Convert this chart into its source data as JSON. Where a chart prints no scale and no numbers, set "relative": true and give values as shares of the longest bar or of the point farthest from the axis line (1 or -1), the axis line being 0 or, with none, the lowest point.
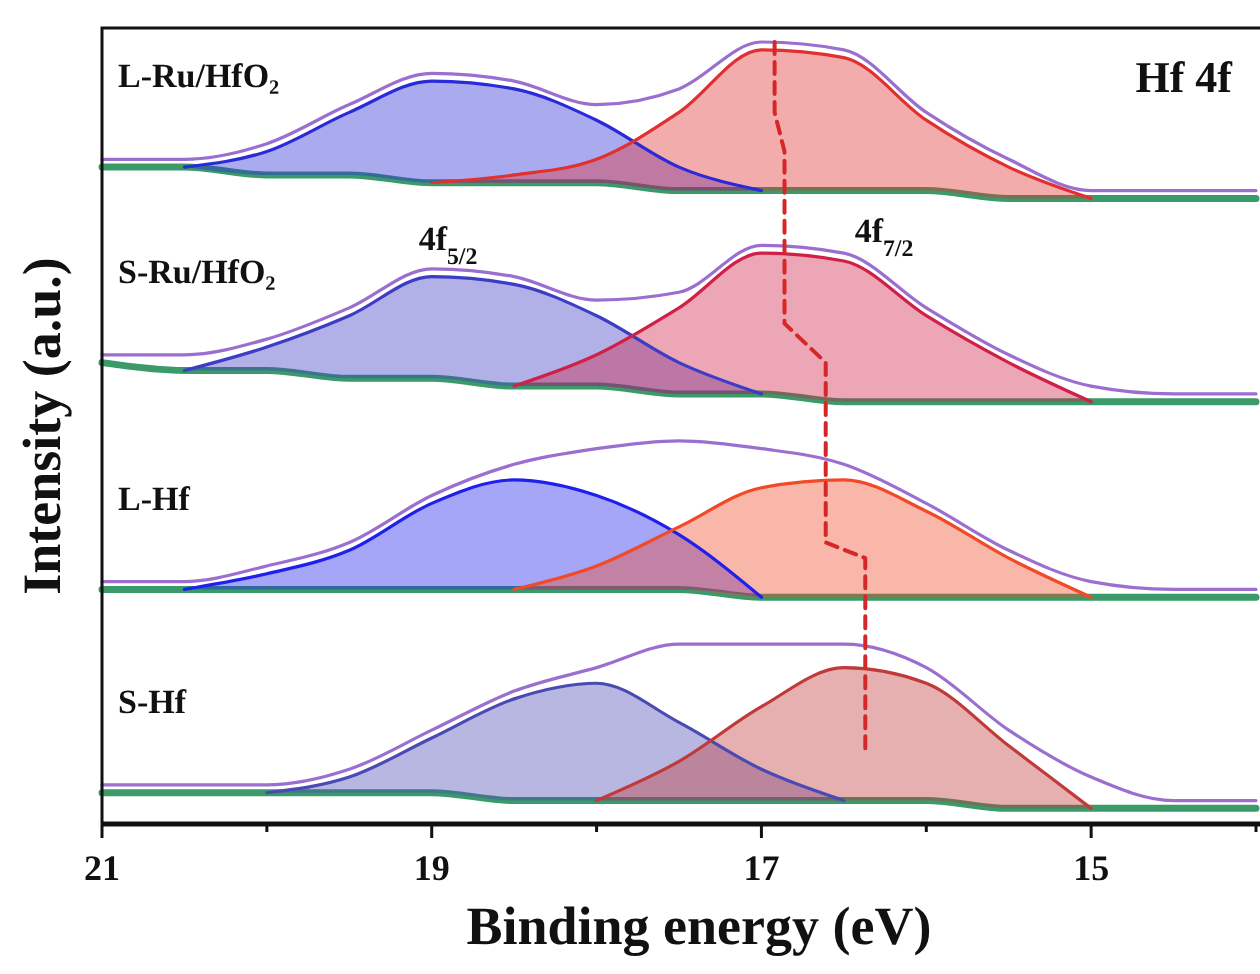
{
  "chart_data": {
    "type": "line",
    "relative": true,
    "xlabel": "Binding energy (eV)",
    "ylabel": "Intensity (a.u.)",
    "xlim": [
      21,
      14
    ],
    "xticks": [
      21,
      {
        "value": 20,
        "label": null
      },
      19,
      {
        "value": 18,
        "label": null
      },
      17,
      {
        "value": 16,
        "label": null
      },
      15,
      {
        "value": 14,
        "label": null
      }
    ],
    "tick_labels": "x",
    "legend": false,
    "marker": "none",
    "x": [
      21,
      20.5,
      20,
      19.5,
      19,
      18.5,
      18,
      17.5,
      17,
      16.5,
      16,
      15.5,
      15,
      14.5,
      14
    ],
    "series": [
      {
        "color": "#3a9a6a",
        "values": [
          0.84,
          0.84,
          0.83,
          0.83,
          0.82,
          0.82,
          0.82,
          0.81,
          0.81,
          0.81,
          0.81,
          0.8,
          0.8,
          0.8,
          0.8
        ]
      },
      {
        "color": "#2a2ad8",
        "values": [
          null,
          0.84,
          0.86,
          0.91,
          0.95,
          0.94,
          0.9,
          0.84,
          0.81,
          null,
          null,
          null,
          null,
          null,
          null
        ],
        "lower": [
          null,
          0.84,
          0.83,
          0.83,
          0.82,
          0.82,
          0.82,
          0.81,
          0.81,
          null,
          null,
          null,
          null,
          null,
          null
        ],
        "upper": [
          null,
          0.84,
          0.86,
          0.91,
          0.95,
          0.94,
          0.9,
          0.84,
          0.81,
          null,
          null,
          null,
          null,
          null,
          null
        ]
      },
      {
        "color": "#e03030",
        "values": [
          null,
          null,
          null,
          null,
          0.82,
          0.83,
          0.85,
          0.91,
          0.99,
          0.98,
          0.9,
          0.84,
          0.8,
          null,
          null
        ],
        "lower": [
          null,
          null,
          null,
          null,
          0.82,
          0.82,
          0.82,
          0.81,
          0.81,
          0.81,
          0.81,
          0.8,
          0.8,
          null,
          null
        ],
        "upper": [
          null,
          null,
          null,
          null,
          0.82,
          0.83,
          0.85,
          0.91,
          0.99,
          0.98,
          0.9,
          0.84,
          0.8,
          null,
          null
        ]
      },
      {
        "name": "L-Ru/HfO₂",
        "color": "#9b6fd0",
        "values": [
          0.85,
          0.85,
          0.87,
          0.92,
          0.96,
          0.95,
          0.92,
          0.94,
          1.0,
          0.99,
          0.91,
          0.85,
          0.81,
          0.81,
          0.81
        ]
      },
      {
        "color": "#3a9a6a",
        "values": [
          0.59,
          0.58,
          0.58,
          0.57,
          0.57,
          0.56,
          0.56,
          0.55,
          0.55,
          0.54,
          0.54,
          0.54,
          0.54,
          0.54,
          0.54
        ]
      },
      {
        "color": "#3c3cc4",
        "values": [
          null,
          0.58,
          0.61,
          0.65,
          0.7,
          0.69,
          0.65,
          0.59,
          0.55,
          null,
          null,
          null,
          null,
          null,
          null
        ],
        "lower": [
          null,
          0.58,
          0.58,
          0.57,
          0.57,
          0.56,
          0.56,
          0.55,
          0.55,
          null,
          null,
          null,
          null,
          null,
          null
        ],
        "upper": [
          null,
          0.58,
          0.61,
          0.65,
          0.7,
          0.69,
          0.65,
          0.59,
          0.55,
          null,
          null,
          null,
          null,
          null,
          null
        ]
      },
      {
        "color": "#d02048",
        "values": [
          null,
          null,
          null,
          null,
          null,
          0.56,
          0.6,
          0.66,
          0.73,
          0.72,
          0.65,
          0.59,
          0.54,
          null,
          null
        ],
        "lower": [
          null,
          null,
          null,
          null,
          null,
          0.56,
          0.56,
          0.55,
          0.55,
          0.54,
          0.54,
          0.54,
          0.54,
          null,
          null
        ],
        "upper": [
          null,
          null,
          null,
          null,
          null,
          0.56,
          0.6,
          0.66,
          0.73,
          0.72,
          0.65,
          0.59,
          0.54,
          null,
          null
        ]
      },
      {
        "name": "S-Ru/HfO₂",
        "color": "#9b6fd0",
        "values": [
          0.6,
          0.6,
          0.62,
          0.66,
          0.71,
          0.7,
          0.67,
          0.68,
          0.74,
          0.73,
          0.66,
          0.6,
          0.56,
          0.55,
          0.55
        ]
      },
      {
        "color": "#3a9a6a",
        "values": [
          0.3,
          0.3,
          0.3,
          0.3,
          0.3,
          0.3,
          0.3,
          0.3,
          0.29,
          0.29,
          0.29,
          0.29,
          0.29,
          0.29,
          0.29
        ]
      },
      {
        "color": "#2020ee",
        "values": [
          null,
          0.3,
          0.32,
          0.35,
          0.41,
          0.44,
          0.42,
          0.37,
          0.29,
          null,
          null,
          null,
          null,
          null,
          null
        ],
        "lower": [
          null,
          0.3,
          0.3,
          0.3,
          0.3,
          0.3,
          0.3,
          0.3,
          0.29,
          null,
          null,
          null,
          null,
          null,
          null
        ],
        "upper": [
          null,
          0.3,
          0.32,
          0.35,
          0.41,
          0.44,
          0.42,
          0.37,
          0.29,
          null,
          null,
          null,
          null,
          null,
          null
        ]
      },
      {
        "color": "#f04a28",
        "values": [
          null,
          null,
          null,
          null,
          null,
          0.3,
          0.33,
          0.38,
          0.43,
          0.44,
          0.4,
          0.34,
          0.29,
          null,
          null
        ],
        "lower": [
          null,
          null,
          null,
          null,
          null,
          0.3,
          0.3,
          0.3,
          0.29,
          0.29,
          0.29,
          0.29,
          0.29,
          null,
          null
        ],
        "upper": [
          null,
          null,
          null,
          null,
          null,
          0.3,
          0.33,
          0.38,
          0.43,
          0.44,
          0.4,
          0.34,
          0.29,
          null,
          null
        ]
      },
      {
        "name": "L-Hf",
        "color": "#9b6fd0",
        "values": [
          0.31,
          0.31,
          0.33,
          0.36,
          0.42,
          0.46,
          0.48,
          0.49,
          0.48,
          0.46,
          0.41,
          0.35,
          0.31,
          0.3,
          0.3
        ]
      },
      {
        "color": "#3a9a6a",
        "values": [
          0.04,
          0.04,
          0.04,
          0.04,
          0.04,
          0.03,
          0.03,
          0.03,
          0.03,
          0.03,
          0.03,
          0.02,
          0.02,
          0.02,
          0.02
        ]
      },
      {
        "color": "#4a4ab4",
        "values": [
          null,
          null,
          0.04,
          0.06,
          0.11,
          0.16,
          0.18,
          0.13,
          0.07,
          0.03,
          null,
          null,
          null,
          null,
          null
        ],
        "lower": [
          null,
          null,
          0.04,
          0.04,
          0.04,
          0.03,
          0.03,
          0.03,
          0.03,
          0.03,
          null,
          null,
          null,
          null,
          null
        ],
        "upper": [
          null,
          null,
          0.04,
          0.06,
          0.11,
          0.16,
          0.18,
          0.13,
          0.07,
          0.03,
          null,
          null,
          null,
          null,
          null
        ]
      },
      {
        "color": "#c03a3a",
        "values": [
          null,
          null,
          null,
          null,
          null,
          null,
          0.03,
          0.08,
          0.15,
          0.2,
          0.18,
          0.1,
          0.02,
          null,
          null
        ],
        "lower": [
          null,
          null,
          null,
          null,
          null,
          null,
          0.03,
          0.03,
          0.03,
          0.03,
          0.03,
          0.02,
          0.02,
          null,
          null
        ],
        "upper": [
          null,
          null,
          null,
          null,
          null,
          null,
          0.03,
          0.08,
          0.15,
          0.2,
          0.18,
          0.1,
          0.02,
          null,
          null
        ]
      },
      {
        "name": "S-Hf",
        "color": "#9b6fd0",
        "values": [
          0.05,
          0.05,
          0.05,
          0.07,
          0.12,
          0.17,
          0.2,
          0.23,
          0.23,
          0.23,
          0.2,
          0.12,
          0.06,
          0.03,
          0.03
        ]
      },
      {
        "color": "#d62728",
        "line_style": "dashed",
        "x": [
          16.92,
          16.92,
          16.86,
          16.86,
          16.61,
          16.61,
          16.37,
          16.37
        ],
        "values": [
          1.0,
          0.91,
          0.86,
          0.64,
          0.59,
          0.36,
          0.34,
          0.09
        ]
      }
    ],
    "annotations": [
      "Hf 4f",
      "4f$_{5/2}$",
      "4f$_{7/2}$"
    ]
  }
}
